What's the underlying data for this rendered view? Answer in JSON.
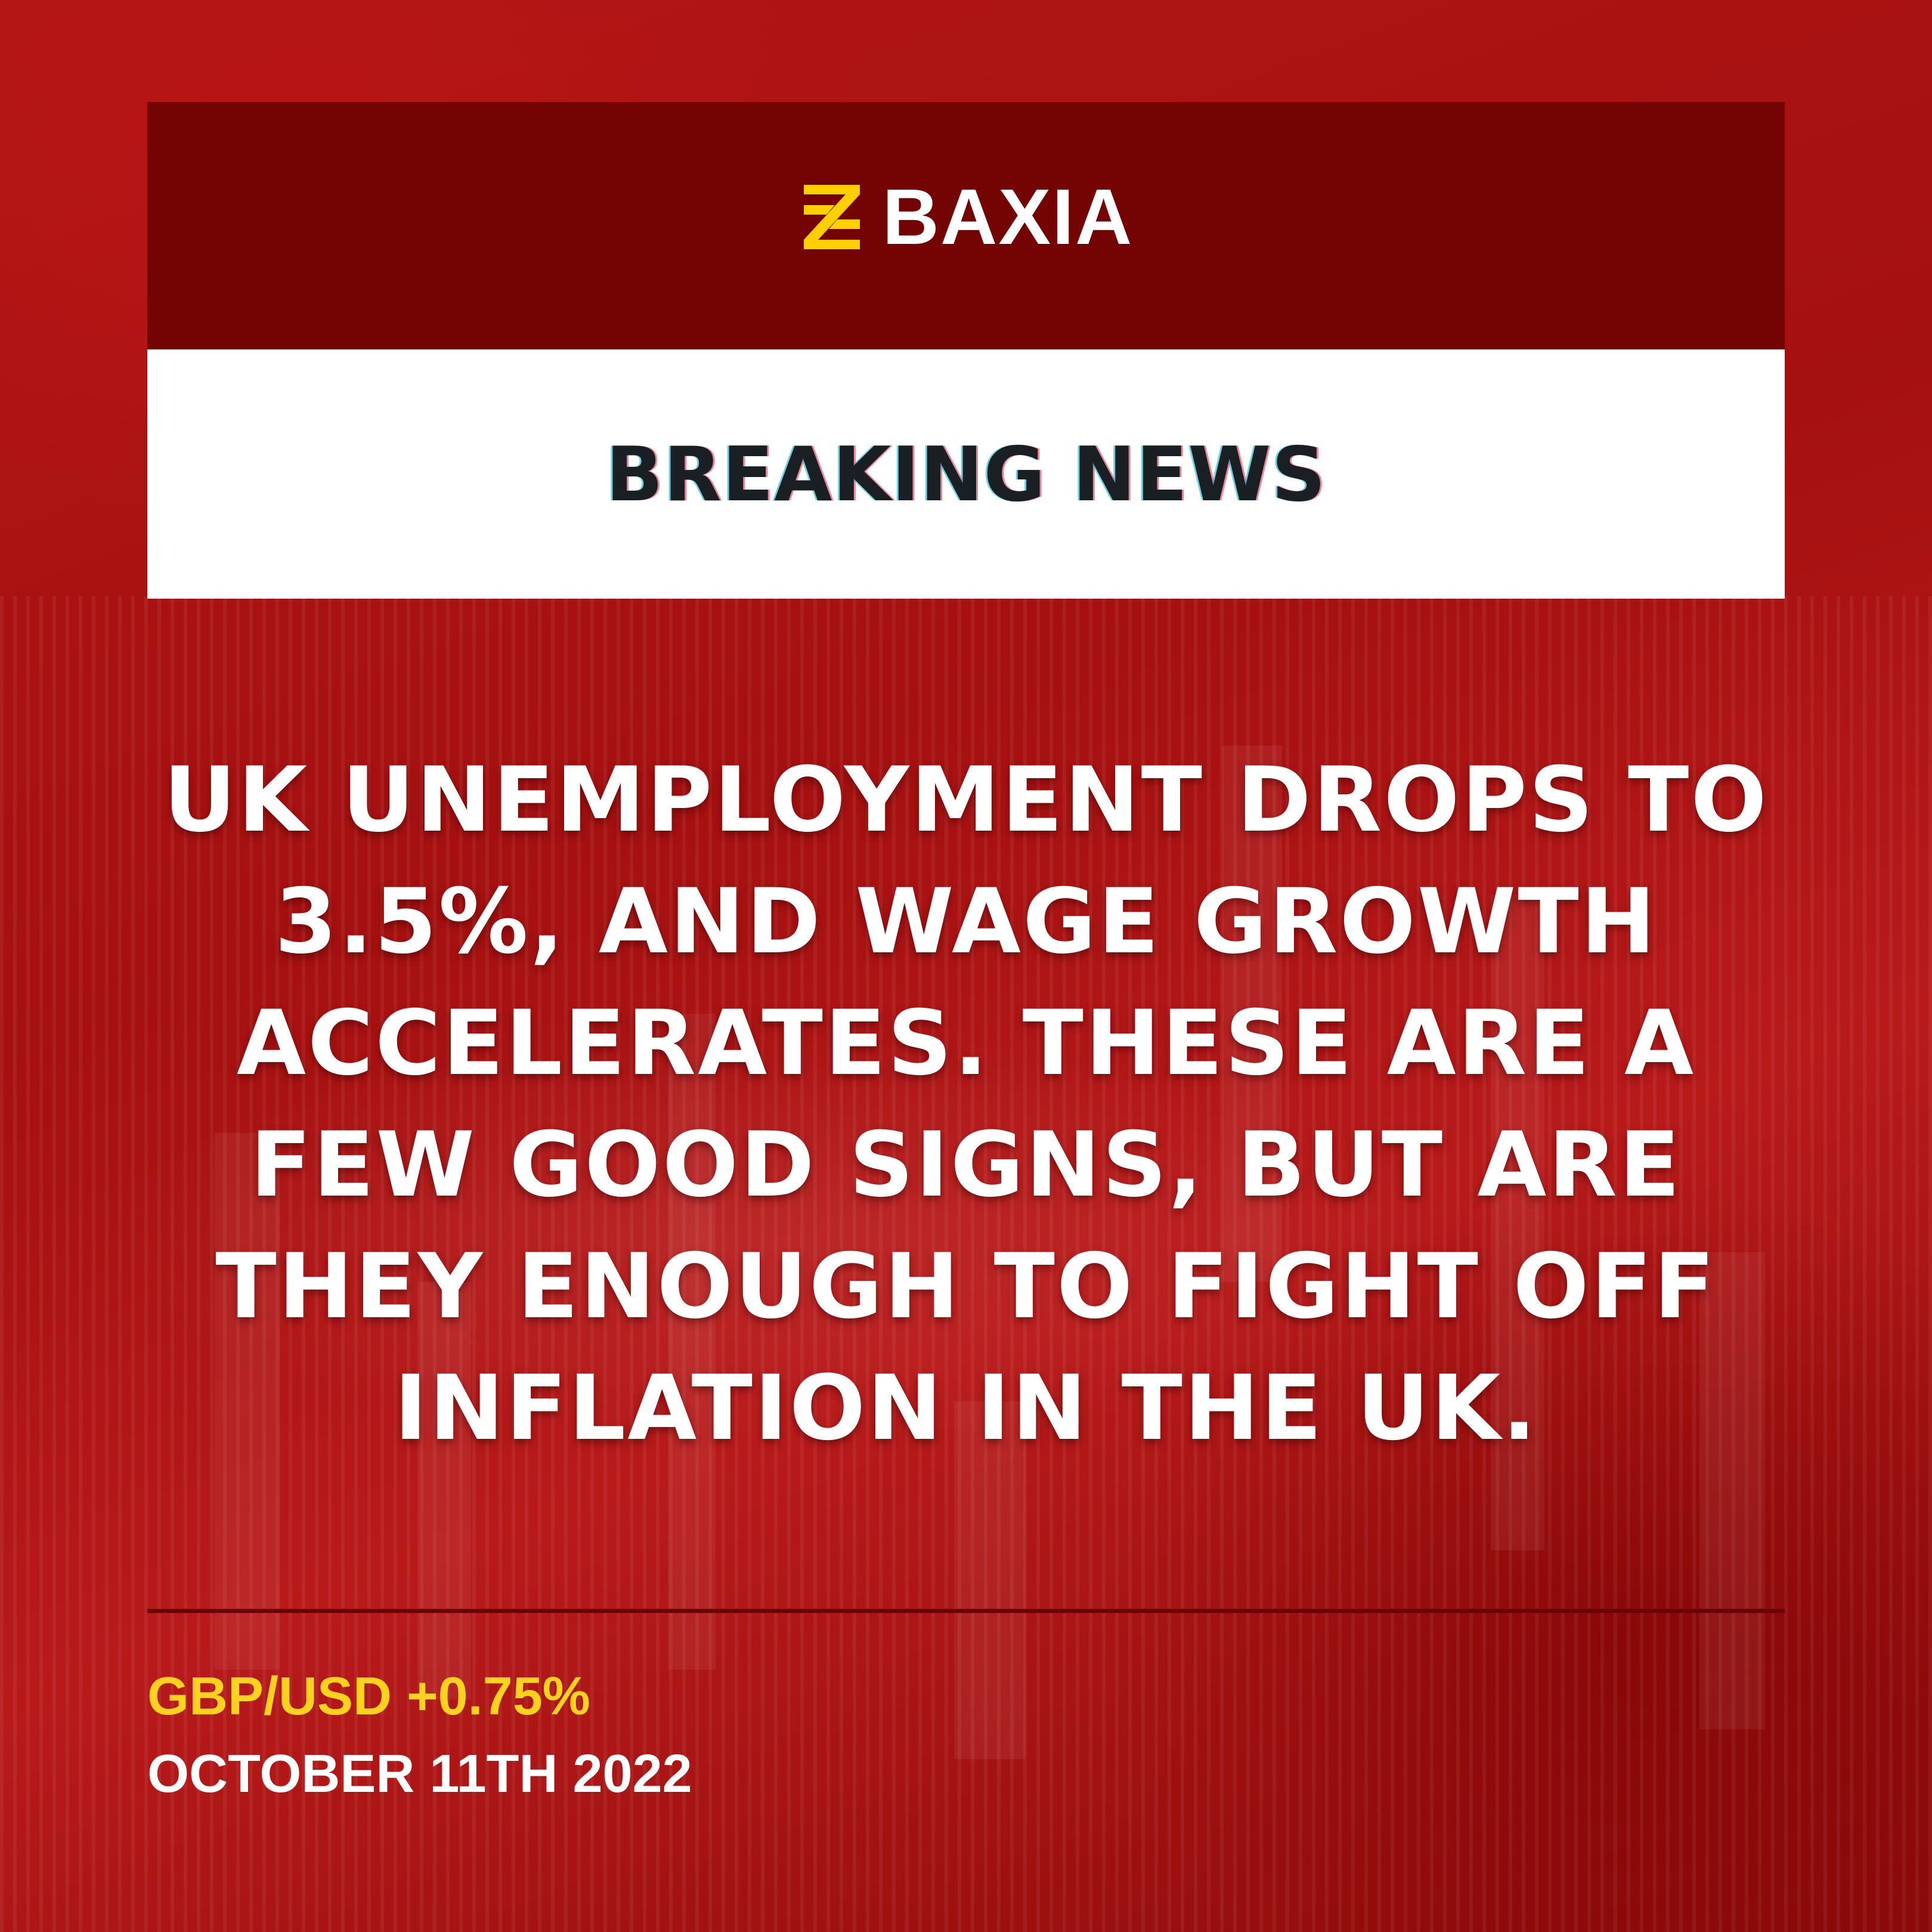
{
  "brand": {
    "name": "BAXIA",
    "logo_icon": "baxia-logo-mark",
    "logo_color": "#ffcf00"
  },
  "banner": {
    "title": "BREAKING NEWS"
  },
  "headline": {
    "text": "UK UNEMPLOYMENT DROPS TO 3.5%, AND WAGE GROWTH ACCELERATES. THESE ARE A FEW GOOD SIGNS, BUT ARE THEY ENOUGH TO FIGHT OFF INFLATION IN THE UK."
  },
  "footer": {
    "ticker": "GBP/USD +0.75%",
    "date": "OCTOBER 11TH 2022"
  },
  "colors": {
    "background": "#a51010",
    "header_panel": "#740404",
    "ticker_text": "#ffd21f",
    "headline_text": "#ffffff"
  }
}
